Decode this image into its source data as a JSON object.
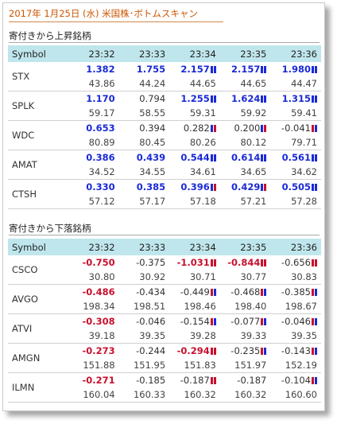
{
  "title": "2017年 1月25日 (水) 米国株･ボトムスキャン",
  "colors": {
    "up": "#1a2ad6",
    "down": "#c8102e",
    "header_bg": "#bfe6ec",
    "title": "#cc5500"
  },
  "sections": [
    {
      "label": "寄付きから上昇銘柄",
      "header": [
        "Symbol",
        "23:32",
        "23:33",
        "23:34",
        "23:35",
        "23:36"
      ],
      "rows": [
        {
          "symbol": "STX",
          "changes": [
            {
              "v": "1.382",
              "s": "up",
              "bars": []
            },
            {
              "v": "1.755",
              "s": "up",
              "bars": []
            },
            {
              "v": "2.157",
              "s": "up",
              "bars": [
                "b",
                "b"
              ]
            },
            {
              "v": "2.157",
              "s": "up",
              "bars": [
                "b",
                "b"
              ]
            },
            {
              "v": "1.980",
              "s": "up",
              "bars": [
                "b",
                "b"
              ]
            }
          ],
          "prices": [
            "43.86",
            "44.24",
            "44.65",
            "44.65",
            "44.47"
          ]
        },
        {
          "symbol": "SPLK",
          "changes": [
            {
              "v": "1.170",
              "s": "up",
              "bars": []
            },
            {
              "v": "0.794",
              "s": "pl",
              "bars": []
            },
            {
              "v": "1.255",
              "s": "up",
              "bars": [
                "b",
                "b"
              ]
            },
            {
              "v": "1.624",
              "s": "up",
              "bars": [
                "b",
                "b"
              ]
            },
            {
              "v": "1.315",
              "s": "up",
              "bars": [
                "b",
                "b"
              ]
            }
          ],
          "prices": [
            "59.17",
            "58.55",
            "59.31",
            "59.92",
            "59.41"
          ]
        },
        {
          "symbol": "WDC",
          "changes": [
            {
              "v": "0.653",
              "s": "up",
              "bars": []
            },
            {
              "v": "0.394",
              "s": "pl",
              "bars": []
            },
            {
              "v": "0.282",
              "s": "pl",
              "bars": [
                "b",
                "r"
              ]
            },
            {
              "v": "0.200",
              "s": "pl",
              "bars": [
                "b",
                "r"
              ]
            },
            {
              "v": "-0.041",
              "s": "pl",
              "bars": [
                "r",
                "b"
              ]
            }
          ],
          "prices": [
            "80.89",
            "80.45",
            "80.26",
            "80.12",
            "79.71"
          ]
        },
        {
          "symbol": "AMAT",
          "changes": [
            {
              "v": "0.386",
              "s": "up",
              "bars": []
            },
            {
              "v": "0.439",
              "s": "up",
              "bars": []
            },
            {
              "v": "0.544",
              "s": "up",
              "bars": [
                "b",
                "b"
              ]
            },
            {
              "v": "0.614",
              "s": "up",
              "bars": [
                "b",
                "b"
              ]
            },
            {
              "v": "0.561",
              "s": "up",
              "bars": [
                "b",
                "b"
              ]
            }
          ],
          "prices": [
            "34.52",
            "34.55",
            "34.61",
            "34.65",
            "34.62"
          ]
        },
        {
          "symbol": "CTSH",
          "changes": [
            {
              "v": "0.330",
              "s": "up",
              "bars": []
            },
            {
              "v": "0.385",
              "s": "up",
              "bars": []
            },
            {
              "v": "0.396",
              "s": "up",
              "bars": [
                "b",
                "r"
              ]
            },
            {
              "v": "0.429",
              "s": "up",
              "bars": [
                "b",
                "r"
              ]
            },
            {
              "v": "0.505",
              "s": "up",
              "bars": [
                "b",
                "b"
              ]
            }
          ],
          "prices": [
            "57.12",
            "57.17",
            "57.18",
            "57.21",
            "57.28"
          ]
        }
      ]
    },
    {
      "label": "寄付きから下落銘柄",
      "header": [
        "Symbol",
        "23:32",
        "23:33",
        "23:34",
        "23:35",
        "23:36"
      ],
      "rows": [
        {
          "symbol": "CSCO",
          "changes": [
            {
              "v": "-0.750",
              "s": "dn",
              "bars": []
            },
            {
              "v": "-0.375",
              "s": "pl",
              "bars": []
            },
            {
              "v": "-1.031",
              "s": "dn",
              "bars": [
                "r",
                "r"
              ]
            },
            {
              "v": "-0.844",
              "s": "dn",
              "bars": [
                "r",
                "r"
              ]
            },
            {
              "v": "-0.656",
              "s": "pl",
              "bars": [
                "r",
                "r"
              ]
            }
          ],
          "prices": [
            "30.80",
            "30.92",
            "30.71",
            "30.77",
            "30.83"
          ]
        },
        {
          "symbol": "AVGO",
          "changes": [
            {
              "v": "-0.486",
              "s": "dn",
              "bars": []
            },
            {
              "v": "-0.434",
              "s": "pl",
              "bars": []
            },
            {
              "v": "-0.449",
              "s": "pl",
              "bars": [
                "r",
                "b"
              ]
            },
            {
              "v": "-0.468",
              "s": "pl",
              "bars": [
                "r",
                "b"
              ]
            },
            {
              "v": "-0.385",
              "s": "pl",
              "bars": [
                "r",
                "b"
              ]
            }
          ],
          "prices": [
            "198.34",
            "198.51",
            "198.46",
            "198.40",
            "198.67"
          ]
        },
        {
          "symbol": "ATVI",
          "changes": [
            {
              "v": "-0.308",
              "s": "dn",
              "bars": []
            },
            {
              "v": "-0.046",
              "s": "pl",
              "bars": []
            },
            {
              "v": "-0.154",
              "s": "pl",
              "bars": [
                "r",
                "b"
              ]
            },
            {
              "v": "-0.077",
              "s": "pl",
              "bars": [
                "r",
                "b"
              ]
            },
            {
              "v": "-0.046",
              "s": "pl",
              "bars": [
                "r",
                "b"
              ]
            }
          ],
          "prices": [
            "39.18",
            "39.35",
            "39.28",
            "39.33",
            "39.35"
          ]
        },
        {
          "symbol": "AMGN",
          "changes": [
            {
              "v": "-0.273",
              "s": "dn",
              "bars": []
            },
            {
              "v": "-0.244",
              "s": "pl",
              "bars": []
            },
            {
              "v": "-0.294",
              "s": "dn",
              "bars": [
                "r",
                "r"
              ]
            },
            {
              "v": "-0.235",
              "s": "pl",
              "bars": [
                "r",
                "b"
              ]
            },
            {
              "v": "-0.143",
              "s": "pl",
              "bars": [
                "r",
                "b"
              ]
            }
          ],
          "prices": [
            "151.88",
            "151.95",
            "151.83",
            "151.97",
            "152.19"
          ]
        },
        {
          "symbol": "ILMN",
          "changes": [
            {
              "v": "-0.271",
              "s": "dn",
              "bars": []
            },
            {
              "v": "-0.185",
              "s": "pl",
              "bars": []
            },
            {
              "v": "-0.187",
              "s": "pl",
              "bars": [
                "r",
                "r"
              ]
            },
            {
              "v": "-0.187",
              "s": "pl",
              "bars": []
            },
            {
              "v": "-0.104",
              "s": "pl",
              "bars": [
                "r",
                "b"
              ]
            }
          ],
          "prices": [
            "160.04",
            "160.33",
            "160.32",
            "160.32",
            "160.60"
          ]
        }
      ]
    }
  ]
}
